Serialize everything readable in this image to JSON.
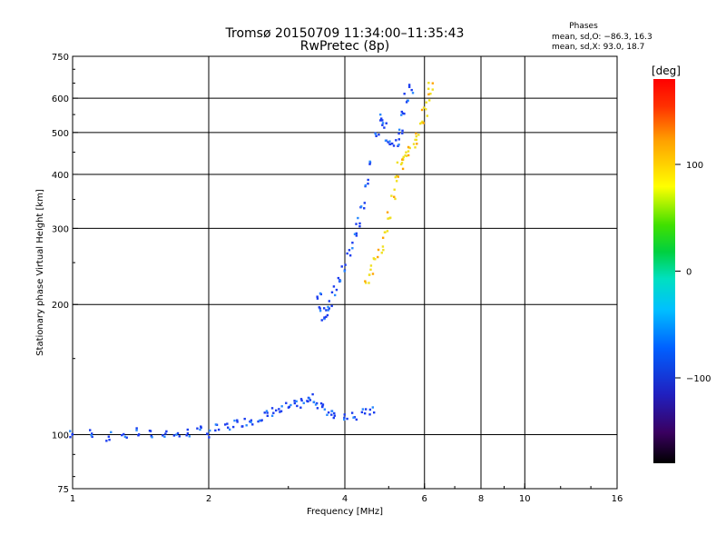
{
  "chart_data": {
    "type": "scatter",
    "title": "Tromsø 20150709 11:34:00–11:35:43",
    "subtitle": "RwPretec (8p)",
    "xlabel": "Frequency [MHz]",
    "ylabel": "Stationary phase Virtual Height [km]",
    "x_scale": "log",
    "y_scale": "log",
    "xlim": [
      1,
      16
    ],
    "ylim": [
      75,
      750
    ],
    "x_ticks": [
      "1",
      "2",
      "4",
      "6",
      "8",
      "10",
      "16"
    ],
    "y_ticks": [
      "75",
      "100",
      "200",
      "300",
      "400",
      "500",
      "600",
      "750"
    ],
    "x_grid": [
      2,
      4,
      6,
      8,
      10
    ],
    "y_grid": [
      100,
      200,
      300,
      400,
      500,
      600
    ],
    "grid": true,
    "phase_box": {
      "title": "Phases",
      "line_O": "mean, sd,O: −86.3, 16.3",
      "line_X": "mean, sd,X:  93.0, 18.7"
    },
    "colorbar": {
      "unit": "[deg]",
      "range": [
        -180,
        180
      ],
      "ticks": [
        "100",
        "0",
        "−100"
      ],
      "tick_values": [
        100,
        0,
        -100
      ]
    },
    "colors": {
      "o_trace": "#1a3cf0",
      "o_trace_light": "#2a8aff",
      "x_trace": "#f0e020",
      "x_trace_orange": "#ffa500"
    },
    "series": [
      {
        "kind": "E-region echo",
        "phase_deg": -110,
        "color": "#1a3cf0",
        "points": [
          [
            1.0,
            100
          ],
          [
            1.1,
            101
          ],
          [
            1.2,
            99
          ],
          [
            1.3,
            100
          ],
          [
            1.4,
            101
          ],
          [
            1.5,
            100
          ],
          [
            1.6,
            101
          ],
          [
            1.7,
            100
          ],
          [
            1.8,
            101
          ],
          [
            1.9,
            102
          ],
          [
            2.0,
            101
          ],
          [
            2.1,
            103
          ],
          [
            2.2,
            104
          ],
          [
            2.3,
            106
          ],
          [
            2.4,
            107
          ],
          [
            2.5,
            108
          ],
          [
            2.6,
            110
          ],
          [
            2.7,
            111
          ],
          [
            2.8,
            113
          ],
          [
            2.9,
            114
          ],
          [
            3.0,
            116
          ],
          [
            3.1,
            117
          ],
          [
            3.2,
            118
          ],
          [
            3.3,
            120
          ],
          [
            3.4,
            121
          ],
          [
            3.5,
            118
          ],
          [
            3.6,
            115
          ],
          [
            3.7,
            113
          ],
          [
            3.8,
            112
          ],
          [
            4.0,
            111
          ],
          [
            4.2,
            111
          ],
          [
            4.4,
            112
          ],
          [
            4.6,
            113
          ]
        ]
      },
      {
        "kind": "F-region O trace",
        "phase_deg": -86.3,
        "color": "#1a3cf0",
        "points": [
          [
            3.5,
            210
          ],
          [
            3.55,
            195
          ],
          [
            3.6,
            185
          ],
          [
            3.65,
            190
          ],
          [
            3.7,
            200
          ],
          [
            3.8,
            215
          ],
          [
            3.9,
            230
          ],
          [
            4.0,
            245
          ],
          [
            4.1,
            265
          ],
          [
            4.2,
            285
          ],
          [
            4.3,
            310
          ],
          [
            4.4,
            340
          ],
          [
            4.5,
            380
          ],
          [
            4.6,
            430
          ],
          [
            4.7,
            490
          ],
          [
            4.8,
            540
          ],
          [
            4.9,
            520
          ],
          [
            5.0,
            480
          ],
          [
            5.1,
            470
          ],
          [
            5.2,
            475
          ],
          [
            5.3,
            500
          ],
          [
            5.4,
            550
          ],
          [
            5.5,
            600
          ],
          [
            5.6,
            630
          ]
        ]
      },
      {
        "kind": "F-region X trace",
        "phase_deg": 93.0,
        "color": "#f0e020",
        "points": [
          [
            4.5,
            230
          ],
          [
            4.6,
            240
          ],
          [
            4.7,
            255
          ],
          [
            4.8,
            270
          ],
          [
            4.9,
            290
          ],
          [
            5.0,
            320
          ],
          [
            5.1,
            360
          ],
          [
            5.2,
            390
          ],
          [
            5.3,
            420
          ],
          [
            5.4,
            440
          ],
          [
            5.5,
            450
          ],
          [
            5.6,
            460
          ],
          [
            5.7,
            470
          ],
          [
            5.8,
            490
          ],
          [
            5.9,
            520
          ],
          [
            6.0,
            560
          ],
          [
            6.1,
            600
          ],
          [
            6.2,
            640
          ]
        ]
      }
    ]
  }
}
